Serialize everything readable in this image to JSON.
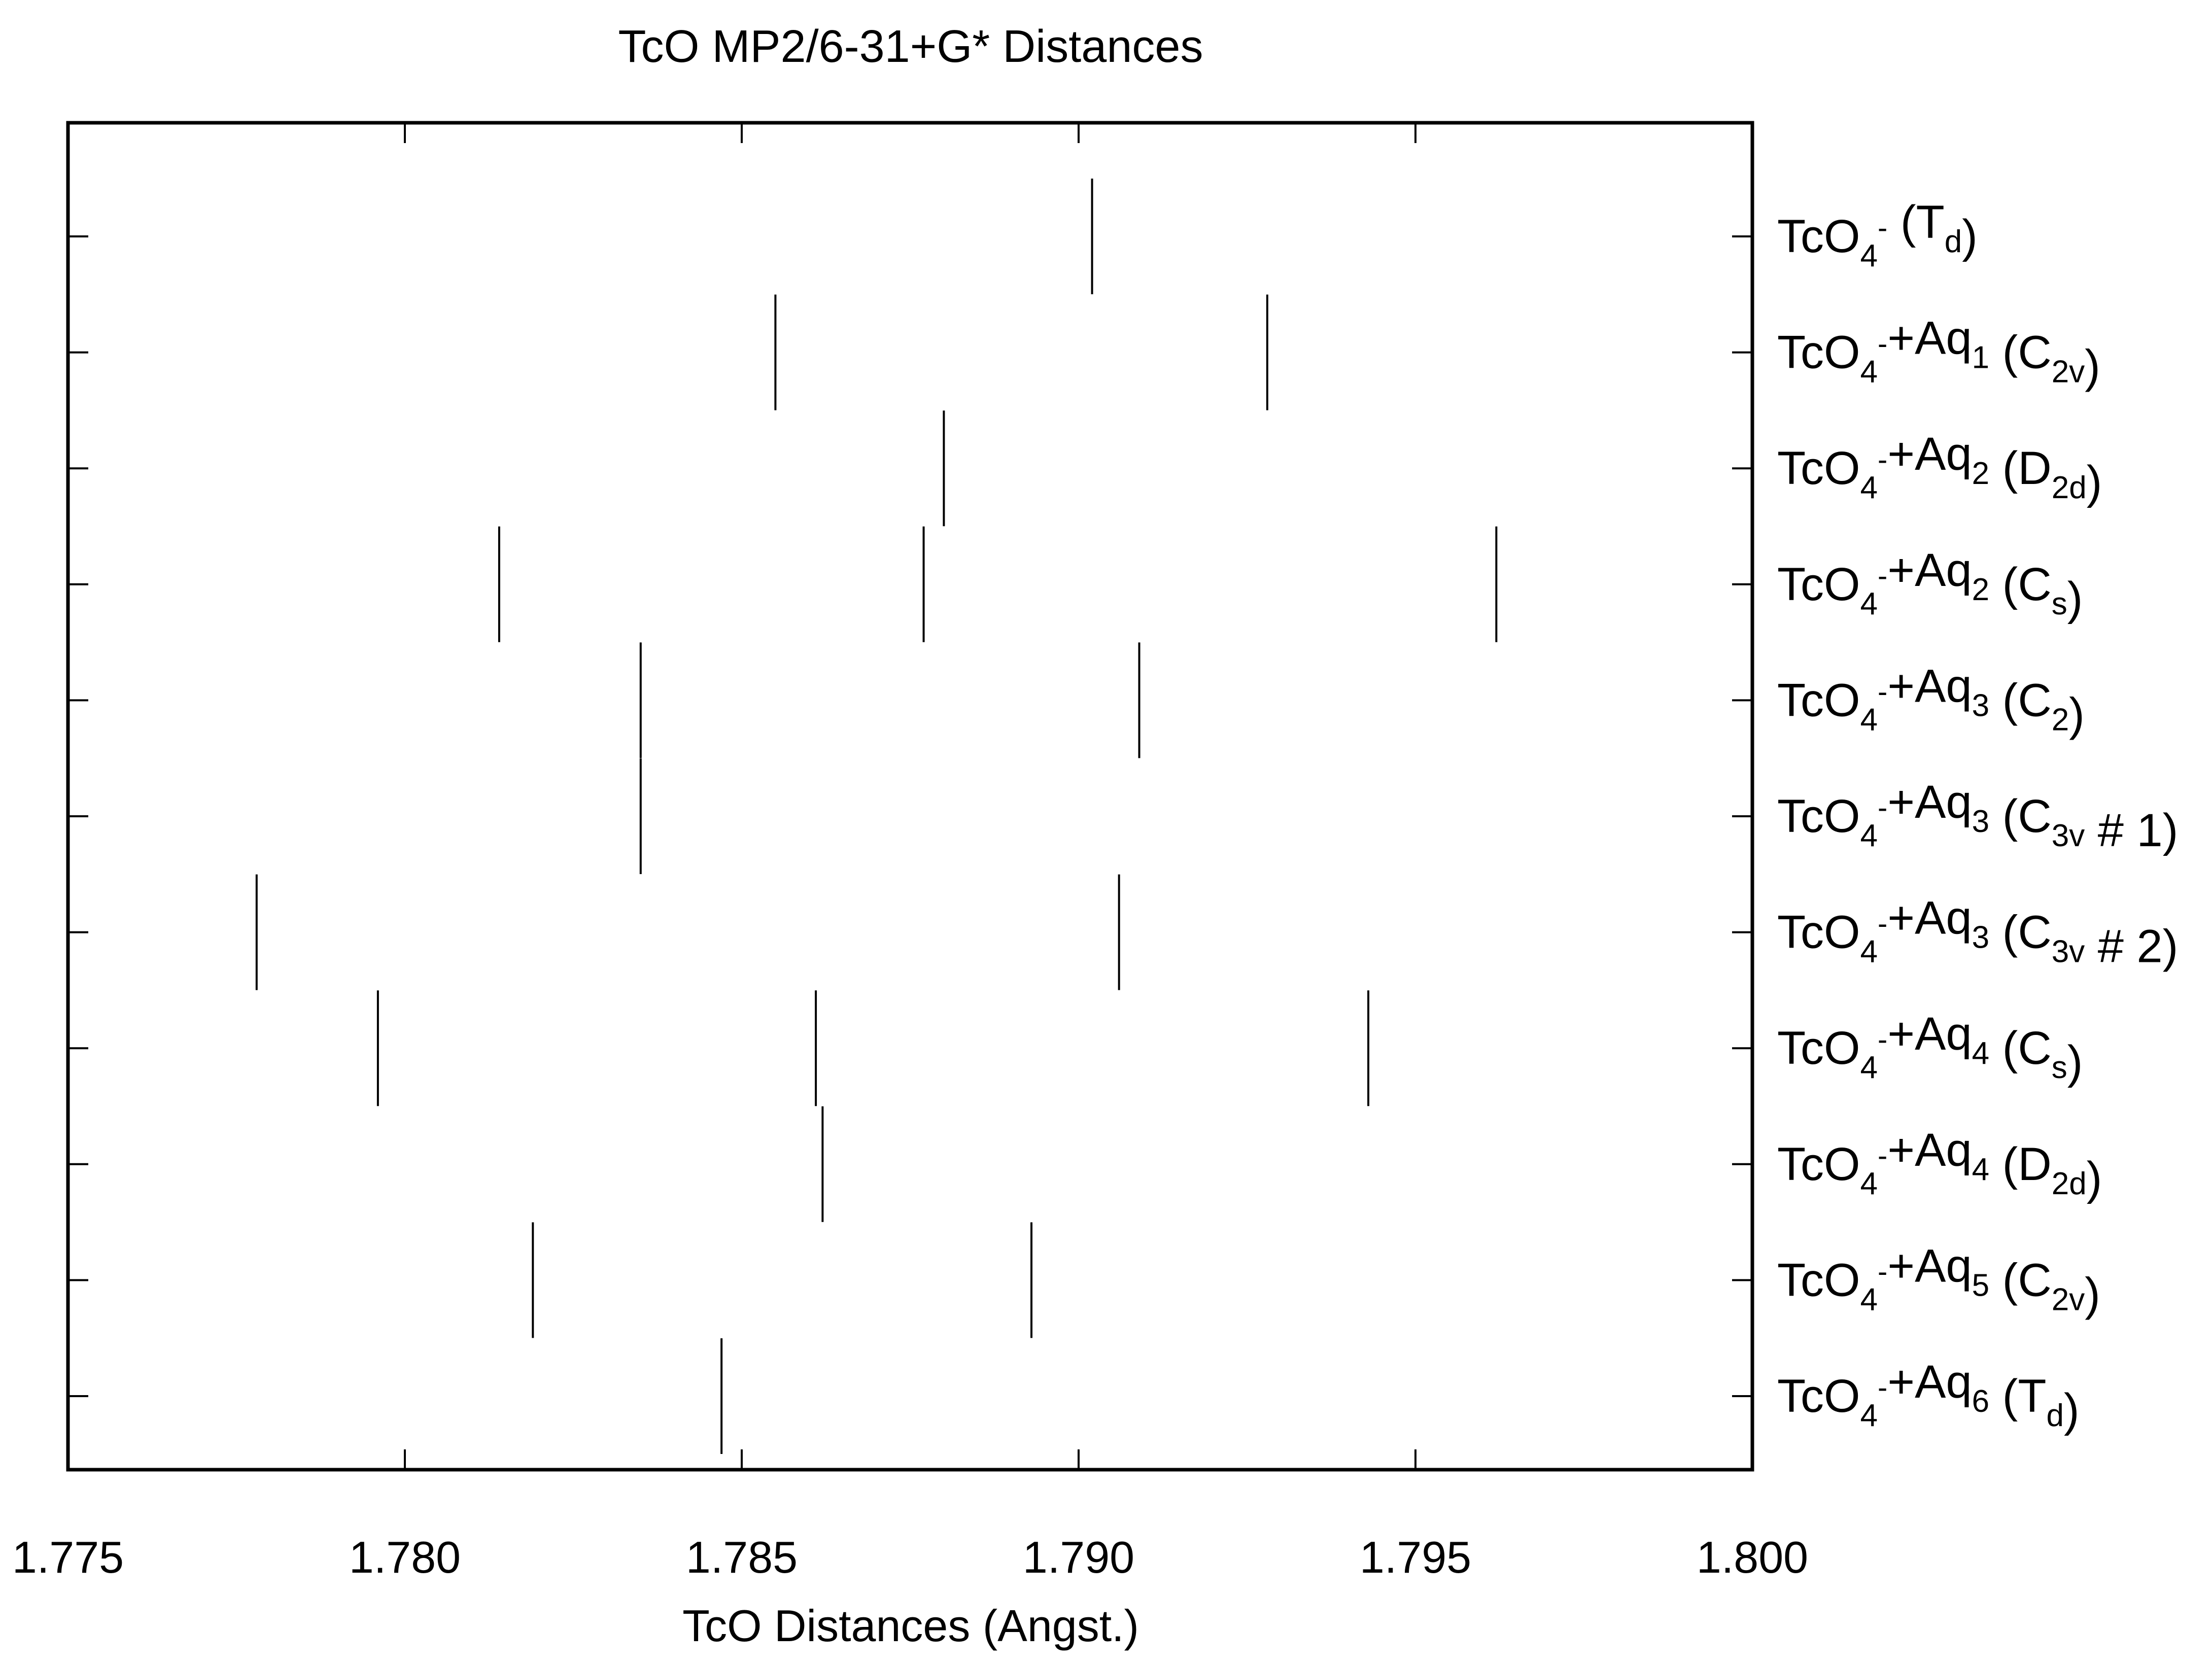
{
  "chart_data": {
    "type": "scatter",
    "title": "TcO MP2/6-31+G* Distances",
    "xlabel": "TcO Distances (Angst.)",
    "ylabel": "",
    "xlim": [
      1.775,
      1.8
    ],
    "x_ticks": [
      "1.775",
      "1.780",
      "1.785",
      "1.790",
      "1.795",
      "1.800"
    ],
    "grid": false,
    "legend": "none",
    "line_color": "#000000",
    "series": [
      {
        "label_parts": [
          {
            "t": "TcO",
            "s": "n"
          },
          {
            "t": "4",
            "s": "sub"
          },
          {
            "t": "-",
            "s": "sup"
          },
          {
            "t": " (T",
            "s": "n"
          },
          {
            "t": "d",
            "s": "sub"
          },
          {
            "t": ")",
            "s": "n"
          }
        ],
        "x": [
          1.7902
        ]
      },
      {
        "label_parts": [
          {
            "t": "TcO",
            "s": "n"
          },
          {
            "t": "4",
            "s": "sub"
          },
          {
            "t": "-",
            "s": "sup"
          },
          {
            "t": "+Aq",
            "s": "n"
          },
          {
            "t": "1",
            "s": "sub"
          },
          {
            "t": " (C",
            "s": "n"
          },
          {
            "t": "2v",
            "s": "sub"
          },
          {
            "t": ")",
            "s": "n"
          }
        ],
        "x": [
          1.7855,
          1.7928
        ]
      },
      {
        "label_parts": [
          {
            "t": "TcO",
            "s": "n"
          },
          {
            "t": "4",
            "s": "sub"
          },
          {
            "t": "-",
            "s": "sup"
          },
          {
            "t": "+Aq",
            "s": "n"
          },
          {
            "t": "2",
            "s": "sub"
          },
          {
            "t": " (D",
            "s": "n"
          },
          {
            "t": "2d",
            "s": "sub"
          },
          {
            "t": ")",
            "s": "n"
          }
        ],
        "x": [
          1.788
        ]
      },
      {
        "label_parts": [
          {
            "t": "TcO",
            "s": "n"
          },
          {
            "t": "4",
            "s": "sub"
          },
          {
            "t": "-",
            "s": "sup"
          },
          {
            "t": "+Aq",
            "s": "n"
          },
          {
            "t": "2",
            "s": "sub"
          },
          {
            "t": " (C",
            "s": "n"
          },
          {
            "t": "s",
            "s": "sub"
          },
          {
            "t": ")",
            "s": "n"
          }
        ],
        "x": [
          1.7814,
          1.7877,
          1.7962
        ]
      },
      {
        "label_parts": [
          {
            "t": "TcO",
            "s": "n"
          },
          {
            "t": "4",
            "s": "sub"
          },
          {
            "t": "-",
            "s": "sup"
          },
          {
            "t": "+Aq",
            "s": "n"
          },
          {
            "t": "3",
            "s": "sub"
          },
          {
            "t": " (C",
            "s": "n"
          },
          {
            "t": "2",
            "s": "sub"
          },
          {
            "t": ")",
            "s": "n"
          }
        ],
        "x": [
          1.7835,
          1.7909
        ]
      },
      {
        "label_parts": [
          {
            "t": "TcO",
            "s": "n"
          },
          {
            "t": "4",
            "s": "sub"
          },
          {
            "t": "-",
            "s": "sup"
          },
          {
            "t": "+Aq",
            "s": "n"
          },
          {
            "t": "3",
            "s": "sub"
          },
          {
            "t": " (C",
            "s": "n"
          },
          {
            "t": "3v",
            "s": "sub"
          },
          {
            "t": " # 1)",
            "s": "n"
          }
        ],
        "x": [
          1.7835
        ]
      },
      {
        "label_parts": [
          {
            "t": "TcO",
            "s": "n"
          },
          {
            "t": "4",
            "s": "sub"
          },
          {
            "t": "-",
            "s": "sup"
          },
          {
            "t": "+Aq",
            "s": "n"
          },
          {
            "t": "3",
            "s": "sub"
          },
          {
            "t": " (C",
            "s": "n"
          },
          {
            "t": "3v",
            "s": "sub"
          },
          {
            "t": " # 2)",
            "s": "n"
          }
        ],
        "x": [
          1.7778,
          1.7906
        ]
      },
      {
        "label_parts": [
          {
            "t": "TcO",
            "s": "n"
          },
          {
            "t": "4",
            "s": "sub"
          },
          {
            "t": "-",
            "s": "sup"
          },
          {
            "t": "+Aq",
            "s": "n"
          },
          {
            "t": "4",
            "s": "sub"
          },
          {
            "t": " (C",
            "s": "n"
          },
          {
            "t": "s",
            "s": "sub"
          },
          {
            "t": ")",
            "s": "n"
          }
        ],
        "x": [
          1.7796,
          1.7861,
          1.7943
        ]
      },
      {
        "label_parts": [
          {
            "t": "TcO",
            "s": "n"
          },
          {
            "t": "4",
            "s": "sub"
          },
          {
            "t": "-",
            "s": "sup"
          },
          {
            "t": "+Aq",
            "s": "n"
          },
          {
            "t": "4",
            "s": "sub"
          },
          {
            "t": " (D",
            "s": "n"
          },
          {
            "t": "2d",
            "s": "sub"
          },
          {
            "t": ")",
            "s": "n"
          }
        ],
        "x": [
          1.7862
        ]
      },
      {
        "label_parts": [
          {
            "t": "TcO",
            "s": "n"
          },
          {
            "t": "4",
            "s": "sub"
          },
          {
            "t": "-",
            "s": "sup"
          },
          {
            "t": "+Aq",
            "s": "n"
          },
          {
            "t": "5",
            "s": "sub"
          },
          {
            "t": " (C",
            "s": "n"
          },
          {
            "t": "2v",
            "s": "sub"
          },
          {
            "t": ")",
            "s": "n"
          }
        ],
        "x": [
          1.7819,
          1.7893
        ]
      },
      {
        "label_parts": [
          {
            "t": "TcO",
            "s": "n"
          },
          {
            "t": "4",
            "s": "sub"
          },
          {
            "t": "-",
            "s": "sup"
          },
          {
            "t": "+Aq",
            "s": "n"
          },
          {
            "t": "6",
            "s": "sub"
          },
          {
            "t": " (T",
            "s": "n"
          },
          {
            "t": "d",
            "s": "sub"
          },
          {
            "t": ")",
            "s": "n"
          }
        ],
        "x": [
          1.7847
        ]
      }
    ]
  }
}
